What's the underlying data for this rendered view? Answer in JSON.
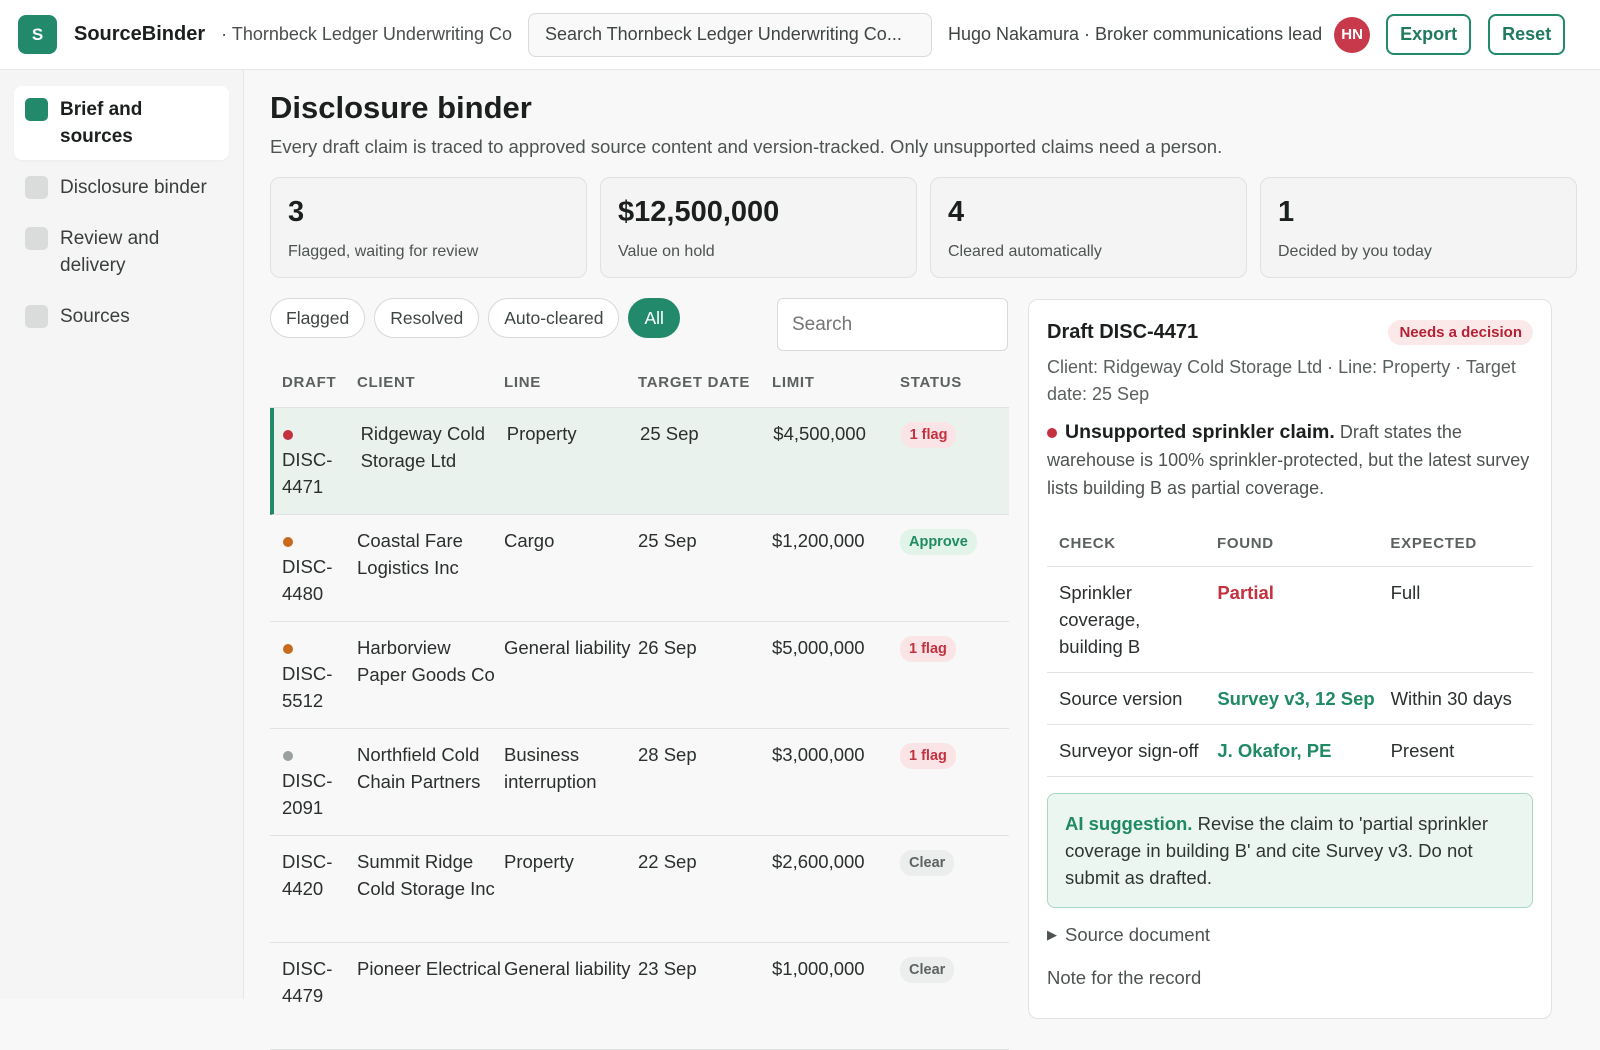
{
  "app": {
    "logo_letter": "S",
    "name": "SourceBinder",
    "org": "· Thornbeck Ledger Underwriting Co",
    "search_placeholder": "Search Thornbeck Ledger Underwriting Co...",
    "user": "Hugo Nakamura · Broker communications lead",
    "avatar_initials": "HN",
    "export_label": "Export",
    "reset_label": "Reset"
  },
  "sidebar": {
    "items": [
      {
        "label": "Brief and sources",
        "active": true
      },
      {
        "label": "Disclosure binder",
        "active": false
      },
      {
        "label": "Review and delivery",
        "active": false
      },
      {
        "label": "Sources",
        "active": false
      }
    ]
  },
  "page": {
    "title": "Disclosure binder",
    "subtitle": "Every draft claim is traced to approved source content and version-tracked. Only unsupported claims need a person."
  },
  "stats": [
    {
      "value": "3",
      "label": "Flagged, waiting for review"
    },
    {
      "value": "$12,500,000",
      "label": "Value on hold"
    },
    {
      "value": "4",
      "label": "Cleared automatically"
    },
    {
      "value": "1",
      "label": "Decided by you today"
    }
  ],
  "filters": {
    "chips": [
      {
        "label": "Flagged",
        "active": false
      },
      {
        "label": "Resolved",
        "active": false
      },
      {
        "label": "Auto-cleared",
        "active": false
      },
      {
        "label": "All",
        "active": true
      }
    ],
    "search_placeholder": "Search"
  },
  "table": {
    "headers": [
      "DRAFT",
      "CLIENT",
      "LINE",
      "TARGET DATE",
      "LIMIT",
      "STATUS"
    ],
    "rows": [
      {
        "dot": "#c4313f",
        "draft": "DISC-\n4471",
        "client": "Ridgeway Cold Storage Ltd",
        "line": "Property",
        "date": "25 Sep",
        "limit": "$4,500,000",
        "status": "1 flag",
        "status_type": "flag",
        "selected": true
      },
      {
        "dot": "#c86a1e",
        "draft": "DISC-\n4480",
        "client": "Coastal Fare Logistics Inc",
        "line": "Cargo",
        "date": "25 Sep",
        "limit": "$1,200,000",
        "status": "Approve",
        "status_type": "approve",
        "selected": false
      },
      {
        "dot": "#c86a1e",
        "draft": "DISC-\n5512",
        "client": "Harborview Paper Goods Co",
        "line": "General liability",
        "date": "26 Sep",
        "limit": "$5,000,000",
        "status": "1 flag",
        "status_type": "flag",
        "selected": false
      },
      {
        "dot": "#9aa09c",
        "draft": "DISC-\n2091",
        "client": "Northfield Cold Chain Partners",
        "line": "Business interruption",
        "date": "28 Sep",
        "limit": "$3,000,000",
        "status": "1 flag",
        "status_type": "flag",
        "selected": false
      },
      {
        "dot": "",
        "draft": "DISC-\n4420",
        "client": "Summit Ridge Cold Storage Inc",
        "line": "Property",
        "date": "22 Sep",
        "limit": "$2,600,000",
        "status": "Clear",
        "status_type": "clear",
        "selected": false
      },
      {
        "dot": "",
        "draft": "DISC-\n4479",
        "client": "Pioneer Electrical",
        "line": "General liability",
        "date": "23 Sep",
        "limit": "$1,000,000",
        "status": "Clear",
        "status_type": "clear",
        "selected": false
      }
    ]
  },
  "detail": {
    "title": "Draft DISC-4471",
    "badge": "Needs a decision",
    "meta": "Client: Ridgeway Cold Storage Ltd · Line: Property · Target date: 25 Sep",
    "issue_title": "Unsupported sprinkler claim.",
    "issue_text": " Draft states the warehouse is 100% sprinkler-protected, but the latest survey lists building B as partial coverage.",
    "checks_headers": [
      "CHECK",
      "FOUND",
      "EXPECTED"
    ],
    "checks": [
      {
        "check": "Sprinkler coverage, building B",
        "found": "Partial",
        "found_color": "#c4313f",
        "expected": "Full"
      },
      {
        "check": "Source version",
        "found": "Survey v3, 12 Sep",
        "found_color": "#1f8a64",
        "expected": "Within 30 days"
      },
      {
        "check": "Surveyor sign-off",
        "found": "J. Okafor, PE",
        "found_color": "#1f8a64",
        "expected": "Present"
      }
    ],
    "ai_label": "AI suggestion.",
    "ai_text": " Revise the claim to 'partial sprinkler coverage in building B' and cite Survey v3. Do not submit as drafted.",
    "source_doc": "Source document",
    "note_label": "Note for the record"
  },
  "colors": {
    "accent": "#23896b",
    "flag_bg": "#fbe4e6",
    "flag_fg": "#c4313f",
    "approve_bg": "#e2f3ea",
    "approve_fg": "#1f8a64",
    "clear_bg": "#eceeed",
    "clear_fg": "#5d6360"
  }
}
